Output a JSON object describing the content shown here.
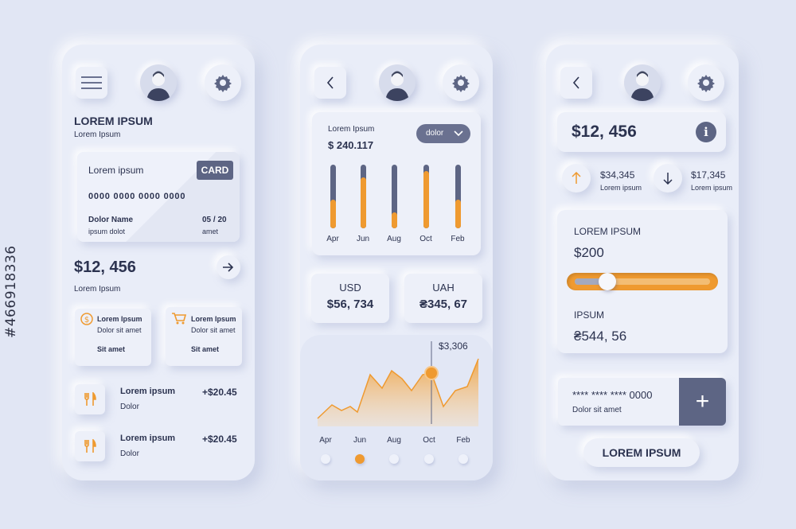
{
  "watermark": "#466918336",
  "screen1": {
    "title": "LOREM IPSUM",
    "subtitle": "Lorem Ipsum",
    "card": {
      "label": "Lorem ipsum",
      "badge": "CARD",
      "number": "0000 0000 0000 0000",
      "holder": "Dolor Name",
      "holder_sub": "ipsum dolot",
      "expiry": "05 / 20",
      "expiry_sub": "amet"
    },
    "balance": "$12, 456",
    "balance_sub": "Lorem Ipsum",
    "tiles": [
      {
        "icon": "dollar-coin-icon",
        "title": "Lorem Ipsum",
        "line": "Dolor sit amet",
        "foot": "Sit amet"
      },
      {
        "icon": "cart-icon",
        "title": "Lorem Ipsum",
        "line": "Dolor sit amet",
        "foot": "Sit amet"
      }
    ],
    "transactions": [
      {
        "icon": "cutlery-icon",
        "title": "Lorem ipsum",
        "sub": "Dolor",
        "amount": "+$20.45"
      },
      {
        "icon": "cutlery-icon",
        "title": "Lorem ipsum",
        "sub": "Dolor",
        "amount": "+$20.45"
      }
    ]
  },
  "screen2": {
    "panel_label": "Lorem Ipsum",
    "panel_value": "$ 240.117",
    "dropdown": "dolor",
    "bars": {
      "categories": [
        "Apr",
        "Jun",
        "Aug",
        "Oct",
        "Feb"
      ],
      "fill": [
        0.45,
        0.8,
        0.25,
        0.9,
        0.45
      ]
    },
    "currency": [
      {
        "code": "USD",
        "value": "$56, 734"
      },
      {
        "code": "UAH",
        "value": "₴345, 67"
      }
    ],
    "area": {
      "categories": [
        "Apr",
        "Jun",
        "Aug",
        "Oct",
        "Feb"
      ],
      "marker_label": "$3,306"
    },
    "dots_active": 1
  },
  "screen3": {
    "balance": "$12, 456",
    "income": {
      "value": "$34,345",
      "label": "Lorem ipsum"
    },
    "outcome": {
      "value": "$17,345",
      "label": "Lorem ipsum"
    },
    "panel_title": "LOREM IPSUM",
    "amount": "$200",
    "slider_level": 0.2,
    "sub_title": "IPSUM",
    "sub_value": "₴544, 56",
    "card_number": "**** **** **** 0000",
    "card_sub": "Dolor sit amet",
    "plus": "+",
    "button": "LOREM IPSUM"
  },
  "colors": {
    "accent": "#ef9a30",
    "dark": "#5d6584",
    "text": "#2c3350"
  }
}
